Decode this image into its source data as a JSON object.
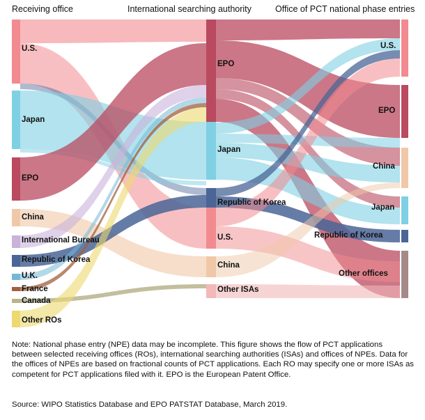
{
  "headers": {
    "receiving": "Receiving office",
    "isa": "International searching authority",
    "npe": "Office of PCT national phase entries"
  },
  "left_labels": [
    "U.S.",
    "Japan",
    "EPO",
    "China",
    "International Bureau",
    "Republic of Korea",
    "U.K.",
    "France",
    "Canada",
    "Other ROs"
  ],
  "middle_labels": [
    "EPO",
    "Japan",
    "Republic of Korea",
    "U.S.",
    "China",
    "Other ISAs"
  ],
  "right_labels": [
    "U.S.",
    "EPO",
    "China",
    "Japan",
    "Republic of Korea",
    "Other offices"
  ],
  "colors": {
    "us": "#f28b8f",
    "japan": "#7fd0e3",
    "epo": "#b94a5f",
    "china": "#f0c8a8",
    "ib": "#c9b3db",
    "korea": "#4a6596",
    "uk": "#74b8d6",
    "france": "#a0603e",
    "canada": "#b9b48d",
    "other": "#ecd970",
    "otherisa": "#f2b8b8",
    "otheroffice": "#a58a8a"
  },
  "note": "Note: National phase entry (NPE) data may be incomplete. This figure shows the flow of PCT applications between selected receiving offices (ROs), international searching authorities (ISAs) and offices of NPEs. Data for the offices of NPEs are based on fractional counts of PCT applications. Each RO may specify one or more ISAs as competent for PCT applications filed with it. EPO is the European Patent Office.",
  "source": "Source: WIPO Statistics Database and EPO PATSTAT Database, March 2019."
}
